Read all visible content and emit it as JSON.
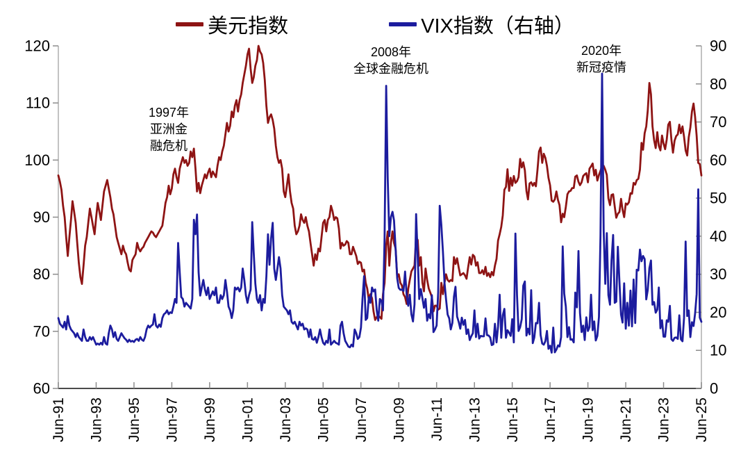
{
  "legend": [
    {
      "label": "美元指数",
      "color": "#8E1414"
    },
    {
      "label": "VIX指数（右轴）",
      "color": "#1C1C9E"
    }
  ],
  "annotations": [
    {
      "lines": [
        "1997年",
        "亚洲金",
        "融危机"
      ]
    },
    {
      "lines": [
        "2008年",
        "全球金融危机"
      ]
    },
    {
      "lines": [
        "2020年",
        "新冠疫情"
      ]
    }
  ],
  "chart_data": {
    "type": "line",
    "title": "",
    "x_start": "1991-06",
    "x_end": "2025-06",
    "frequency": "monthly",
    "x_tick_labels": [
      "Jun-91",
      "Jun-93",
      "Jun-95",
      "Jun-97",
      "Jun-99",
      "Jun-01",
      "Jun-03",
      "Jun-05",
      "Jun-07",
      "Jun-09",
      "Jun-11",
      "Jun-13",
      "Jun-15",
      "Jun-17",
      "Jun-19",
      "Jun-21",
      "Jun-23",
      "Jun-25"
    ],
    "left_axis": {
      "label": "",
      "min": 60,
      "max": 120,
      "ticks": [
        60,
        70,
        80,
        90,
        100,
        110,
        120
      ]
    },
    "right_axis": {
      "label": "",
      "min": 0,
      "max": 90,
      "ticks": [
        0,
        10,
        20,
        30,
        40,
        50,
        60,
        70,
        80,
        90
      ]
    },
    "grid": false,
    "legend_position": "top",
    "series": [
      {
        "name": "美元指数",
        "axis": "left",
        "color": "#8E1414",
        "values": [
          97.3,
          96.2,
          94.8,
          92,
          90,
          86.5,
          83.2,
          86.5,
          89.5,
          92.8,
          91,
          89,
          85.5,
          82,
          79.5,
          78.3,
          81.5,
          85,
          86.5,
          89,
          91.5,
          90,
          88.5,
          87,
          90,
          92.5,
          91,
          89.5,
          92,
          94.5,
          95.5,
          96.5,
          95,
          93.5,
          91.5,
          90.5,
          88.5,
          86.5,
          85.5,
          84.5,
          83.5,
          85,
          84,
          83.5,
          82,
          80.8,
          80.5,
          82.5,
          83,
          83.5,
          85.5,
          84.5,
          84,
          84.5,
          84.8,
          85.5,
          86,
          86.5,
          87,
          87.5,
          87.3,
          86.8,
          86.5,
          87,
          87.5,
          88,
          88.5,
          90.5,
          92.5,
          93.5,
          95.5,
          94,
          95,
          97.5,
          98.5,
          97,
          96,
          98.5,
          99.5,
          100.5,
          99.5,
          100,
          99,
          99.5,
          101.5,
          100.5,
          102,
          98.5,
          94.5,
          96,
          94.2,
          95.5,
          96.5,
          97.5,
          96.8,
          97.8,
          98.5,
          97,
          98,
          97.5,
          97,
          99,
          100.5,
          100,
          101.5,
          102.5,
          104.5,
          106.5,
          105,
          106,
          108.5,
          107.5,
          109.5,
          110.5,
          108.5,
          110.5,
          111.5,
          113.5,
          115,
          116.5,
          118.5,
          119.5,
          116,
          113.5,
          114.5,
          116.5,
          117.5,
          120,
          119,
          118.5,
          117,
          114,
          109.5,
          106.5,
          107.5,
          108,
          107,
          105.5,
          102.5,
          100.5,
          99.5,
          100,
          98.5,
          94.5,
          93.5,
          95.5,
          97.5,
          94.5,
          92.5,
          91.5,
          88.5,
          87,
          87.5,
          88.5,
          90.5,
          89.5,
          89,
          90,
          88.5,
          87.5,
          85.5,
          83.5,
          81.5,
          83.5,
          82.5,
          84.5,
          84,
          86.5,
          89,
          89.5,
          87.5,
          89.5,
          90,
          92,
          91,
          89.5,
          90,
          89.8,
          88,
          84.5,
          85.5,
          85,
          85.2,
          85.8,
          85.5,
          83.5,
          83.5,
          84.8,
          84,
          83.2,
          81.8,
          82.2,
          82,
          80.5,
          80.8,
          78.5,
          77.5,
          75.5,
          76.5,
          75.8,
          73.5,
          72,
          72.5,
          72.8,
          72.5,
          72.2,
          76.5,
          78.5,
          85,
          87.5,
          81.5,
          85.5,
          87.5,
          85.5,
          84.5,
          79.5,
          80,
          78.5,
          78,
          76.5,
          76,
          74.8,
          77.5,
          79,
          80.5,
          81,
          81.5,
          86.5,
          86,
          81.5,
          83,
          78.5,
          77,
          81,
          79,
          77.5,
          76.8,
          76,
          73.5,
          74.5,
          74.5,
          73.8,
          74,
          78.5,
          76.5,
          78.5,
          80,
          79,
          78.7,
          79,
          78.8,
          83,
          81.8,
          82.8,
          81.2,
          79.8,
          80,
          80.2,
          79.8,
          79.2,
          81.2,
          83,
          81.7,
          83.4,
          83.1,
          81.5,
          82.1,
          80.2,
          80.2,
          80.7,
          80,
          81.3,
          79.7,
          80.2,
          79.5,
          80.4,
          79.8,
          81.5,
          82.7,
          85.9,
          87,
          88.3,
          90.3,
          94.8,
          95.3,
          98.4,
          94.6,
          96.9,
          95.5,
          97.2,
          96,
          96.3,
          97,
          100.2,
          98.7,
          99.6,
          98.2,
          94.6,
          93.1,
          95.9,
          96.1,
          95.5,
          96,
          95.4,
          98.3,
          101.5,
          102.2,
          99.5,
          101.1,
          100.4,
          99,
          96.9,
          95.6,
          92.9,
          92.7,
          93.1,
          94.5,
          93,
          92.1,
          89.1,
          90.6,
          90,
          91.8,
          94,
          94.5,
          94.6,
          95.1,
          95.1,
          97.1,
          97.3,
          96.2,
          95.6,
          96.1,
          97.2,
          97.5,
          97.7,
          96.1,
          98.5,
          98.9,
          99.4,
          97.3,
          98.3,
          96.4,
          97.4,
          98.1,
          99,
          99,
          98.3,
          97.4,
          93.3,
          92.1,
          93.9,
          94,
          91.9,
          89.9,
          90.6,
          90.9,
          93.2,
          91.3,
          90,
          92.4,
          92.2,
          92.6,
          94.2,
          94.1,
          96,
          95.7,
          96.5,
          96.7,
          98.3,
          103,
          101.8,
          104.7,
          105.9,
          108.7,
          113.5,
          111.5,
          105.9,
          103.5,
          102.1,
          104.9,
          102.5,
          101.7,
          104.3,
          102.9,
          101.9,
          103.6,
          106.2,
          106.7,
          103.5,
          101.3,
          103.4,
          104.2,
          104.5,
          106.2,
          104.7,
          105.9,
          104.1,
          101.7,
          100.8,
          104,
          105.7,
          108.5,
          109.9,
          107.6,
          104.2,
          99.5,
          99.3,
          97.3
        ]
      },
      {
        "name": "VIX指数（右轴）",
        "axis": "right",
        "color": "#1C1C9E",
        "values": [
          18.5,
          17,
          16.5,
          16,
          17.5,
          15.5,
          19,
          16.5,
          15.5,
          15,
          14.5,
          13.5,
          14.5,
          13.5,
          13,
          12.5,
          15.5,
          13.5,
          12.5,
          12.5,
          13.5,
          12.8,
          13.5,
          12.5,
          11.5,
          11.8,
          11.5,
          12,
          11.5,
          13.5,
          11.8,
          11.5,
          14.5,
          16.5,
          15.5,
          13.5,
          14.8,
          13,
          12.5,
          13.5,
          14.5,
          13.8,
          13.2,
          12.8,
          12.2,
          12.8,
          12.3,
          12.5,
          12.2,
          12.8,
          13,
          12.5,
          13.5,
          12.8,
          12.5,
          13.5,
          15.5,
          16.5,
          16,
          16.5,
          16.8,
          19.5,
          16.5,
          16,
          16.8,
          16.2,
          18.5,
          19.5,
          19.8,
          20.5,
          19.5,
          20,
          19.8,
          21.5,
          23.5,
          22.5,
          38.2,
          30.5,
          24,
          23.5,
          21.5,
          22.5,
          22,
          21.5,
          21,
          23.5,
          44.3,
          40.5,
          45.7,
          30.5,
          24.4,
          26.5,
          28.5,
          26,
          24.5,
          26.5,
          23.5,
          24.5,
          25.5,
          24.5,
          26.5,
          22.5,
          22.5,
          24.5,
          23.5,
          24.5,
          28.5,
          25.5,
          21.5,
          20.5,
          18.5,
          20.5,
          26.5,
          26,
          26.5,
          25.5,
          26.5,
          31.5,
          28.5,
          24.5,
          22.5,
          24.5,
          26,
          43.7,
          35.5,
          27.5,
          23.5,
          22.5,
          24.5,
          20.5,
          23.5,
          22.5,
          29.5,
          40.5,
          32.5,
          39.5,
          43.5,
          31.5,
          28.5,
          31.5,
          34.5,
          31.5,
          24.5,
          21.5,
          21,
          20.5,
          19.5,
          20.5,
          17.5,
          17,
          17.5,
          16.5,
          15.5,
          17.5,
          16.5,
          17,
          15.5,
          15.8,
          15.5,
          13.5,
          15.5,
          13,
          12.8,
          13.5,
          12,
          13.5,
          15.5,
          13.5,
          12,
          11.5,
          12.5,
          12,
          15.5,
          11.5,
          12,
          12.5,
          12,
          11.8,
          11.5,
          16.5,
          17.5,
          14.5,
          12.5,
          11.8,
          11,
          10.8,
          11.5,
          11,
          15.5,
          14.5,
          13,
          13.5,
          16,
          23.5,
          29.5,
          18,
          18.5,
          24,
          22.5,
          26.5,
          25.5,
          26,
          20.5,
          17.8,
          23.5,
          23,
          20.5,
          39.5,
          79.5,
          55.3,
          40,
          45,
          46.4,
          44.1,
          36.5,
          28.9,
          26.4,
          25.9,
          26,
          25.6,
          30.7,
          24.5,
          21.7,
          24.6,
          19.5,
          17.6,
          22.1,
          45.8,
          34.5,
          23.5,
          26.1,
          23.7,
          21.2,
          23.5,
          17.8,
          19.5,
          18.4,
          24.5,
          14.8,
          15.5,
          16.5,
          25.3,
          48,
          43,
          36,
          27.8,
          23.4,
          19.4,
          18.4,
          15.5,
          17.2,
          24.1,
          26.7,
          18.9,
          17.5,
          15.7,
          18.6,
          16.7,
          18,
          14.3,
          15.5,
          12.7,
          13.7,
          14.5,
          20.5,
          13.5,
          17,
          13.1,
          13.8,
          13.7,
          13.7,
          18.4,
          14,
          13.9,
          13.4,
          11.4,
          11.6,
          17,
          12.1,
          16.3,
          24.6,
          13.3,
          19.2,
          20.9,
          13.3,
          15.3,
          14.6,
          13.8,
          18.2,
          12.1,
          40.7,
          24.5,
          15.1,
          16.1,
          18.2,
          27,
          28.1,
          13.9,
          15.7,
          14.2,
          25.8,
          11.9,
          13.4,
          17.2,
          17.1,
          22.5,
          14,
          11.8,
          11.5,
          12.4,
          15.1,
          10.4,
          11.2,
          9.4,
          16,
          9.5,
          10.2,
          11.3,
          11,
          13.5,
          37.3,
          24.9,
          21.5,
          13.5,
          16.1,
          12.8,
          12.9,
          12.1,
          25.2,
          21.3,
          36.1,
          19.8,
          14.8,
          16.5,
          12.7,
          18.7,
          15.1,
          16.1,
          24.6,
          15.3,
          17.6,
          12.6,
          13.8,
          18.8,
          40.1,
          82.7,
          41.4,
          27.5,
          40.8,
          24.5,
          22,
          33.6,
          40.3,
          22.5,
          22.8,
          37.2,
          28,
          19.4,
          17.3,
          27.6,
          15.7,
          22.5,
          16.5,
          25.7,
          16.3,
          28.6,
          17.2,
          31.2,
          31,
          36.5,
          33.4,
          34.8,
          34,
          23.4,
          25.9,
          31.6,
          33.6,
          22,
          22.7,
          19.9,
          20.7,
          26.5,
          15.8,
          17.9,
          13.6,
          13.6,
          17.9,
          17.5,
          21.7,
          12.9,
          12.5,
          13.3,
          13.4,
          13,
          19.2,
          12.9,
          12.4,
          18.5,
          38.6,
          19,
          20.5,
          13.5,
          17.4,
          16.4,
          19.6,
          24.8,
          52.3,
          18.6,
          17.5
        ]
      }
    ]
  },
  "colors": {
    "usd_line": "#8E1414",
    "vix_line": "#1C1C9E",
    "y_axis": "#ADADAD",
    "x_axis": "#4A4A4A",
    "tick": "#8C8C8C",
    "text": "#000000"
  }
}
